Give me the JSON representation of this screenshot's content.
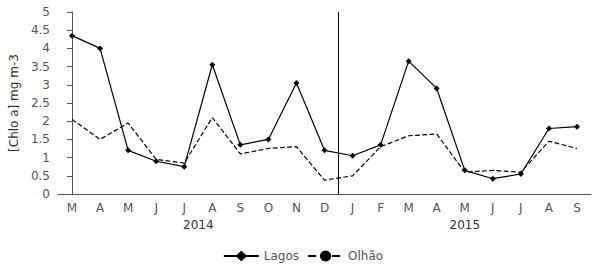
{
  "chart_data": {
    "type": "line",
    "categories": [
      "M",
      "A",
      "M",
      "J",
      "J",
      "A",
      "S",
      "O",
      "N",
      "D",
      "J",
      "F",
      "M",
      "A",
      "M",
      "J",
      "J",
      "A",
      "S"
    ],
    "series": [
      {
        "name": "Lagos",
        "color": "#000000",
        "marker": "diamond",
        "line_style": "solid",
        "values": [
          4.35,
          4.0,
          1.2,
          0.9,
          0.75,
          3.55,
          1.35,
          1.5,
          3.05,
          1.2,
          1.05,
          1.35,
          3.65,
          2.9,
          0.65,
          0.42,
          0.55,
          1.8,
          1.85
        ]
      },
      {
        "name": "Olhão",
        "color": "#000000",
        "marker": "none",
        "line_style": "dashed",
        "values": [
          2.05,
          1.5,
          1.95,
          0.95,
          0.85,
          2.1,
          1.1,
          1.25,
          1.3,
          0.38,
          0.5,
          1.3,
          1.6,
          1.65,
          0.6,
          0.65,
          0.6,
          1.45,
          1.25
        ]
      }
    ],
    "ylabel": "[Chlo a] mg m-3",
    "ylim": [
      0,
      5
    ],
    "yticks": [
      0,
      0.5,
      1,
      1.5,
      2,
      2.5,
      3,
      3.5,
      4,
      4.5,
      5
    ],
    "grid": false,
    "legend": "bottom",
    "annotations": [
      {
        "text": "2014",
        "x": 4.5
      },
      {
        "text": "2015",
        "x": 14.0
      },
      {
        "type": "vline",
        "x": 9.5
      }
    ]
  }
}
